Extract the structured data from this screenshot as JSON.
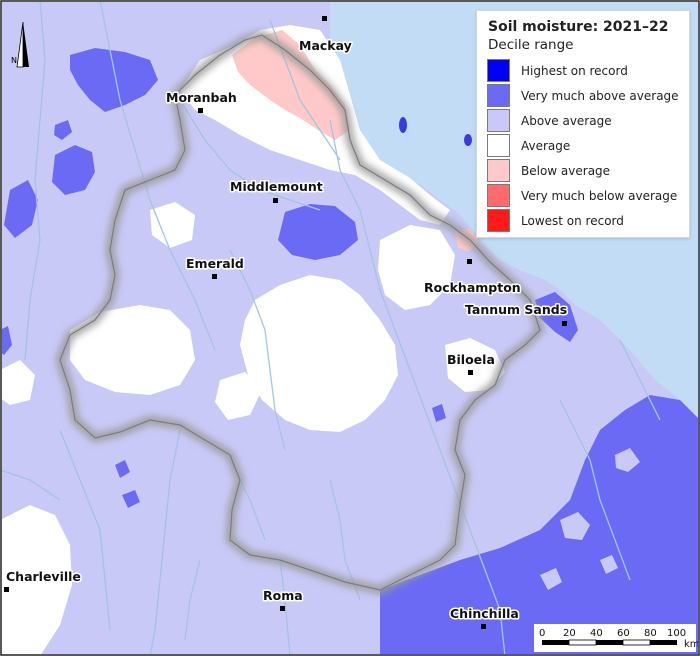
{
  "legend": {
    "title": "Soil moisture: 2021–22",
    "subtitle": "Decile range",
    "items": [
      {
        "label": "Highest on record",
        "color": "#0000f5"
      },
      {
        "label": "Very much above average",
        "color": "#6a6af5"
      },
      {
        "label": "Above average",
        "color": "#c9c9f7"
      },
      {
        "label": "Average",
        "color": "#ffffff"
      },
      {
        "label": "Below average",
        "color": "#ffc9c9"
      },
      {
        "label": "Very much below average",
        "color": "#ff6a6a"
      },
      {
        "label": "Lowest on record",
        "color": "#ff1a1a"
      }
    ]
  },
  "towns": [
    {
      "name": "Mackay"
    },
    {
      "name": "Moranbah"
    },
    {
      "name": "Middlemount"
    },
    {
      "name": "Emerald"
    },
    {
      "name": "Rockhampton"
    },
    {
      "name": "Tannum Sands"
    },
    {
      "name": "Biloela"
    },
    {
      "name": "Charleville"
    },
    {
      "name": "Roma"
    },
    {
      "name": "Chinchilla"
    }
  ],
  "scale_bar": {
    "ticks": [
      "0",
      "20",
      "40",
      "60",
      "80",
      "100"
    ],
    "unit": "km"
  },
  "north_arrow": {
    "label": "N"
  },
  "colors": {
    "ocean": "#c2dcf5",
    "river": "#a3c4e0",
    "basin_outline": "#7d7d7d"
  }
}
